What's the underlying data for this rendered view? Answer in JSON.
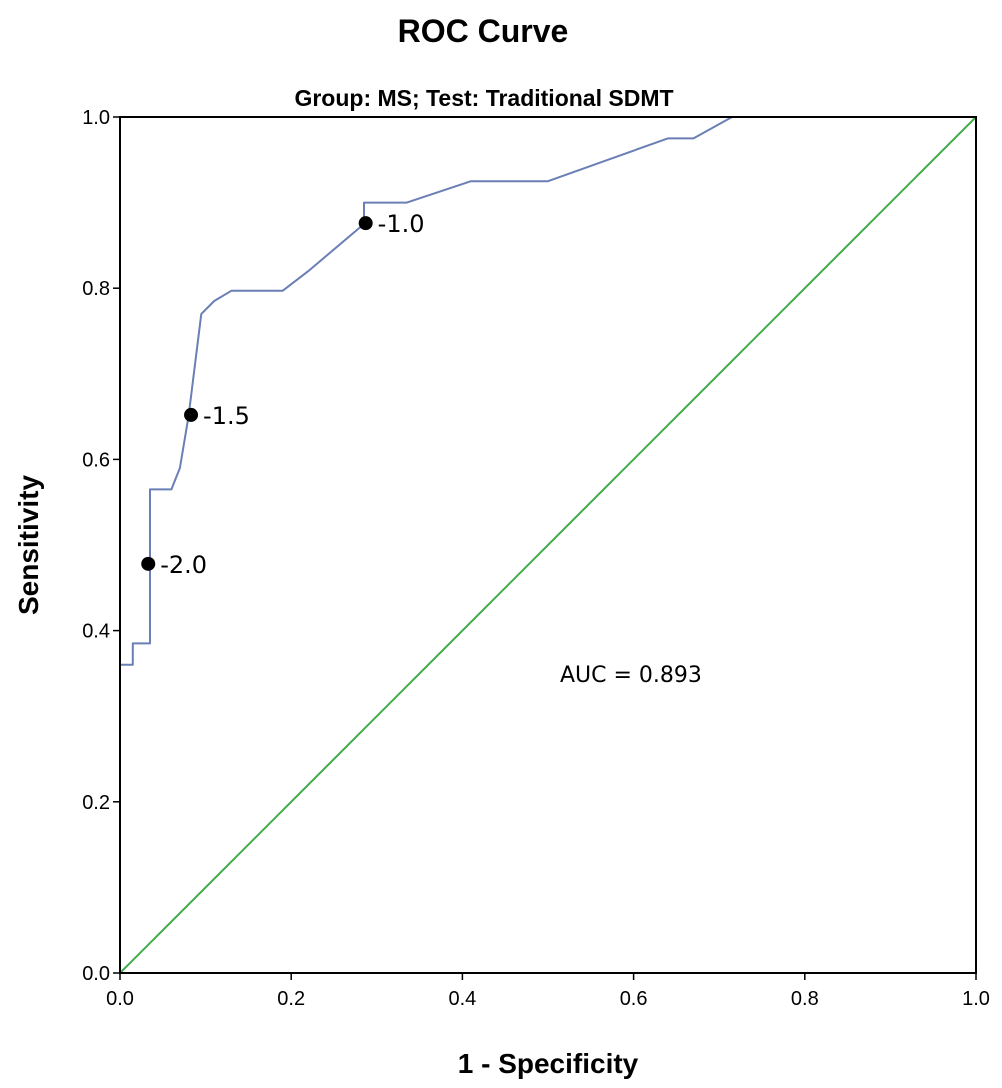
{
  "chart_data": {
    "type": "line",
    "title": "ROC Curve",
    "subtitle": "Group: MS; Test: Traditional SDMT",
    "xlabel": "1 - Specificity",
    "ylabel": "Sensitivity",
    "xlim": [
      0,
      1
    ],
    "ylim": [
      0,
      1
    ],
    "xticks": [
      "0.0",
      "0.2",
      "0.4",
      "0.6",
      "0.8",
      "1.0"
    ],
    "yticks": [
      "0.0",
      "0.2",
      "0.4",
      "0.6",
      "0.8",
      "1.0"
    ],
    "grid": false,
    "series": [
      {
        "color": "#6a7fb5",
        "x": [
          0,
          0,
          0.015,
          0.015,
          0.035,
          0.035,
          0.045,
          0.06,
          0.07,
          0.08,
          0.095,
          0.11,
          0.13,
          0.19,
          0.22,
          0.285,
          0.285,
          0.335,
          0.41,
          0.5,
          0.57,
          0.64,
          0.67,
          0.715,
          1.0
        ],
        "y": [
          0,
          0.36,
          0.36,
          0.385,
          0.385,
          0.565,
          0.565,
          0.565,
          0.59,
          0.65,
          0.77,
          0.785,
          0.797,
          0.797,
          0.82,
          0.875,
          0.9,
          0.9,
          0.925,
          0.925,
          0.95,
          0.975,
          0.975,
          1.0,
          1.0
        ]
      },
      {
        "color": "#3fae49",
        "x": [
          0,
          1
        ],
        "y": [
          0,
          1
        ]
      }
    ],
    "cutoffs": [
      {
        "x": 0.287,
        "y": 0.876,
        "label": "-1.0"
      },
      {
        "x": 0.083,
        "y": 0.652,
        "label": "-1.5"
      },
      {
        "x": 0.033,
        "y": 0.478,
        "label": "-2.0"
      }
    ],
    "annotation": "AUC = 0.893"
  }
}
